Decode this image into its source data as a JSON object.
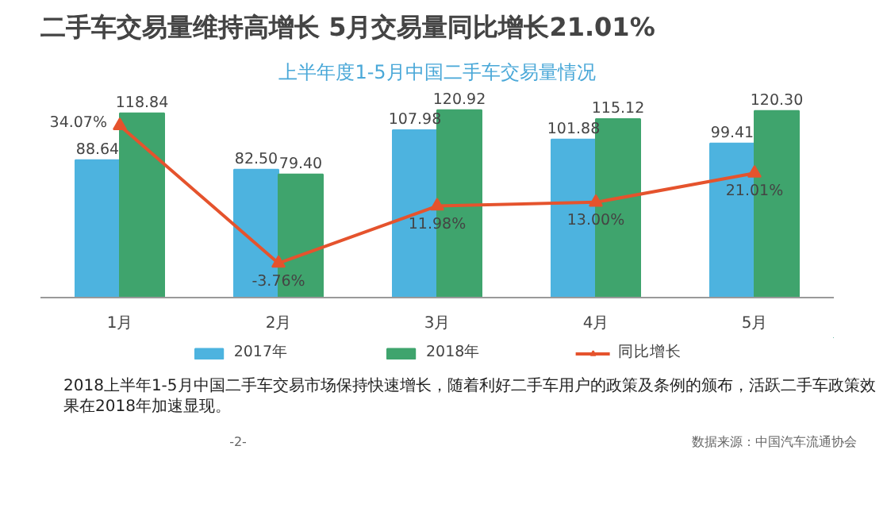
{
  "chart_data": {
    "type": "bar",
    "title": "二手车交易量维持高增长  5月交易量同比增长21.01%",
    "subtitle": "上半年度1-5月中国二手车交易量情况",
    "categories": [
      "1月",
      "2月",
      "3月",
      "4月",
      "5月"
    ],
    "series": [
      {
        "name": "2017年",
        "color": "#4db3df",
        "values": [
          88.64,
          82.5,
          107.98,
          101.88,
          99.41
        ],
        "value_labels": [
          "88.64",
          "82.50",
          "107.98",
          "101.88",
          "99.41"
        ]
      },
      {
        "name": "2018年",
        "color": "#3fa46d",
        "values": [
          118.84,
          79.4,
          120.92,
          115.12,
          120.3
        ],
        "value_labels": [
          "118.84",
          "79.40",
          "120.92",
          "115.12",
          "120.30"
        ]
      },
      {
        "name": "同比增长",
        "type": "line",
        "axis": "y2",
        "color": "#e5532d",
        "marker": "triangle",
        "values": [
          34.07,
          -3.76,
          11.98,
          13.0,
          21.01
        ],
        "value_labels": [
          "34.07%",
          "-3.76%",
          "11.98%",
          "13.00%",
          "21.01%"
        ]
      }
    ],
    "tick_labels": "x",
    "grid": false,
    "legend": "bottom",
    "annotations": [
      "2018上半年1-5月中国二手车交易市场保持快速增长，随着利好二手车用户的政策及条例的颁布，活跃二手车政策效果在2018年加速显现。",
      "-2-",
      "数据来源：中国汽车流通协会"
    ]
  }
}
